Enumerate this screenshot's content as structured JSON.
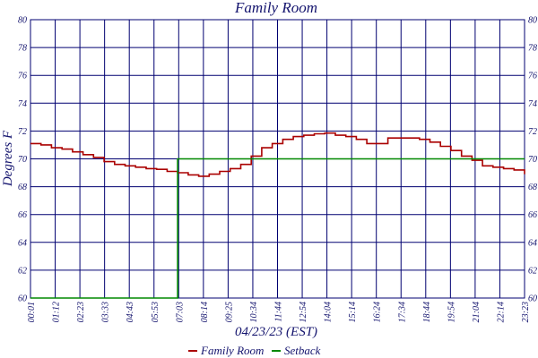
{
  "chart_data": {
    "type": "line",
    "title": "Family Room",
    "xlabel": "04/23/23 (EST)",
    "ylabel": "Degrees F",
    "ylim": [
      60,
      80
    ],
    "yticks": [
      60,
      62,
      64,
      66,
      68,
      70,
      72,
      74,
      76,
      78,
      80
    ],
    "xticks": [
      "00:01",
      "01:12",
      "02:23",
      "03:33",
      "04:43",
      "05:53",
      "07:03",
      "08:14",
      "09:25",
      "10:34",
      "11:44",
      "12:54",
      "14:04",
      "15:14",
      "16:24",
      "17:34",
      "18:44",
      "19:54",
      "21:04",
      "22:14",
      "23:23"
    ],
    "grid": true,
    "legend_position": "bottom",
    "series": [
      {
        "name": "Family Room",
        "color": "#aa0000",
        "values": [
          [
            0,
            71.1
          ],
          [
            0.5,
            71.0
          ],
          [
            1,
            70.8
          ],
          [
            1.5,
            70.7
          ],
          [
            2,
            70.5
          ],
          [
            2.5,
            70.3
          ],
          [
            3,
            70.1
          ],
          [
            3.5,
            69.8
          ],
          [
            4,
            69.6
          ],
          [
            4.5,
            69.5
          ],
          [
            5,
            69.4
          ],
          [
            5.5,
            69.3
          ],
          [
            6,
            69.25
          ],
          [
            6.5,
            69.1
          ],
          [
            7,
            69.0
          ],
          [
            7.5,
            68.85
          ],
          [
            8,
            68.75
          ],
          [
            8.5,
            68.9
          ],
          [
            9,
            69.1
          ],
          [
            9.5,
            69.3
          ],
          [
            10,
            69.6
          ],
          [
            10.5,
            70.2
          ],
          [
            11,
            70.8
          ],
          [
            11.5,
            71.1
          ],
          [
            12,
            71.4
          ],
          [
            12.5,
            71.6
          ],
          [
            13,
            71.7
          ],
          [
            13.5,
            71.8
          ],
          [
            14,
            71.85
          ],
          [
            14.5,
            71.7
          ],
          [
            15,
            71.6
          ],
          [
            15.5,
            71.4
          ],
          [
            16,
            71.1
          ],
          [
            16.5,
            71.1
          ],
          [
            17,
            71.5
          ],
          [
            17.5,
            71.5
          ],
          [
            18,
            71.5
          ],
          [
            18.5,
            71.4
          ],
          [
            19,
            71.2
          ],
          [
            19.5,
            70.9
          ],
          [
            20,
            70.6
          ],
          [
            20.5,
            70.2
          ],
          [
            21,
            69.9
          ],
          [
            21.5,
            69.5
          ],
          [
            22,
            69.4
          ],
          [
            22.5,
            69.3
          ],
          [
            23,
            69.2
          ],
          [
            23.5,
            68.9
          ]
        ]
      },
      {
        "name": "Setback",
        "color": "#008800",
        "values": [
          [
            0,
            60
          ],
          [
            7.0,
            60
          ],
          [
            7.0,
            70
          ],
          [
            23.5,
            70
          ]
        ]
      }
    ]
  }
}
